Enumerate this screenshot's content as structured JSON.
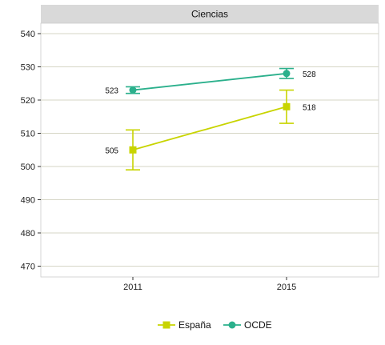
{
  "chart_data": {
    "type": "line",
    "facet_title": "Ciencias",
    "categories": [
      "2011",
      "2015"
    ],
    "ylim": [
      467,
      547
    ],
    "yticks": [
      470,
      480,
      490,
      500,
      510,
      520,
      530,
      540
    ],
    "grid": true,
    "legend_position": "bottom",
    "series": [
      {
        "name": "España",
        "color": "#c8d400",
        "marker": "square",
        "values": [
          505,
          518
        ],
        "lower": [
          499,
          513
        ],
        "upper": [
          511,
          523
        ],
        "labels": [
          "505",
          "518"
        ]
      },
      {
        "name": "OCDE",
        "color": "#2bb08c",
        "marker": "circle",
        "values": [
          523,
          528
        ],
        "lower": [
          522,
          526.5
        ],
        "upper": [
          524,
          529.5
        ],
        "labels": [
          "523",
          "528"
        ]
      }
    ]
  }
}
